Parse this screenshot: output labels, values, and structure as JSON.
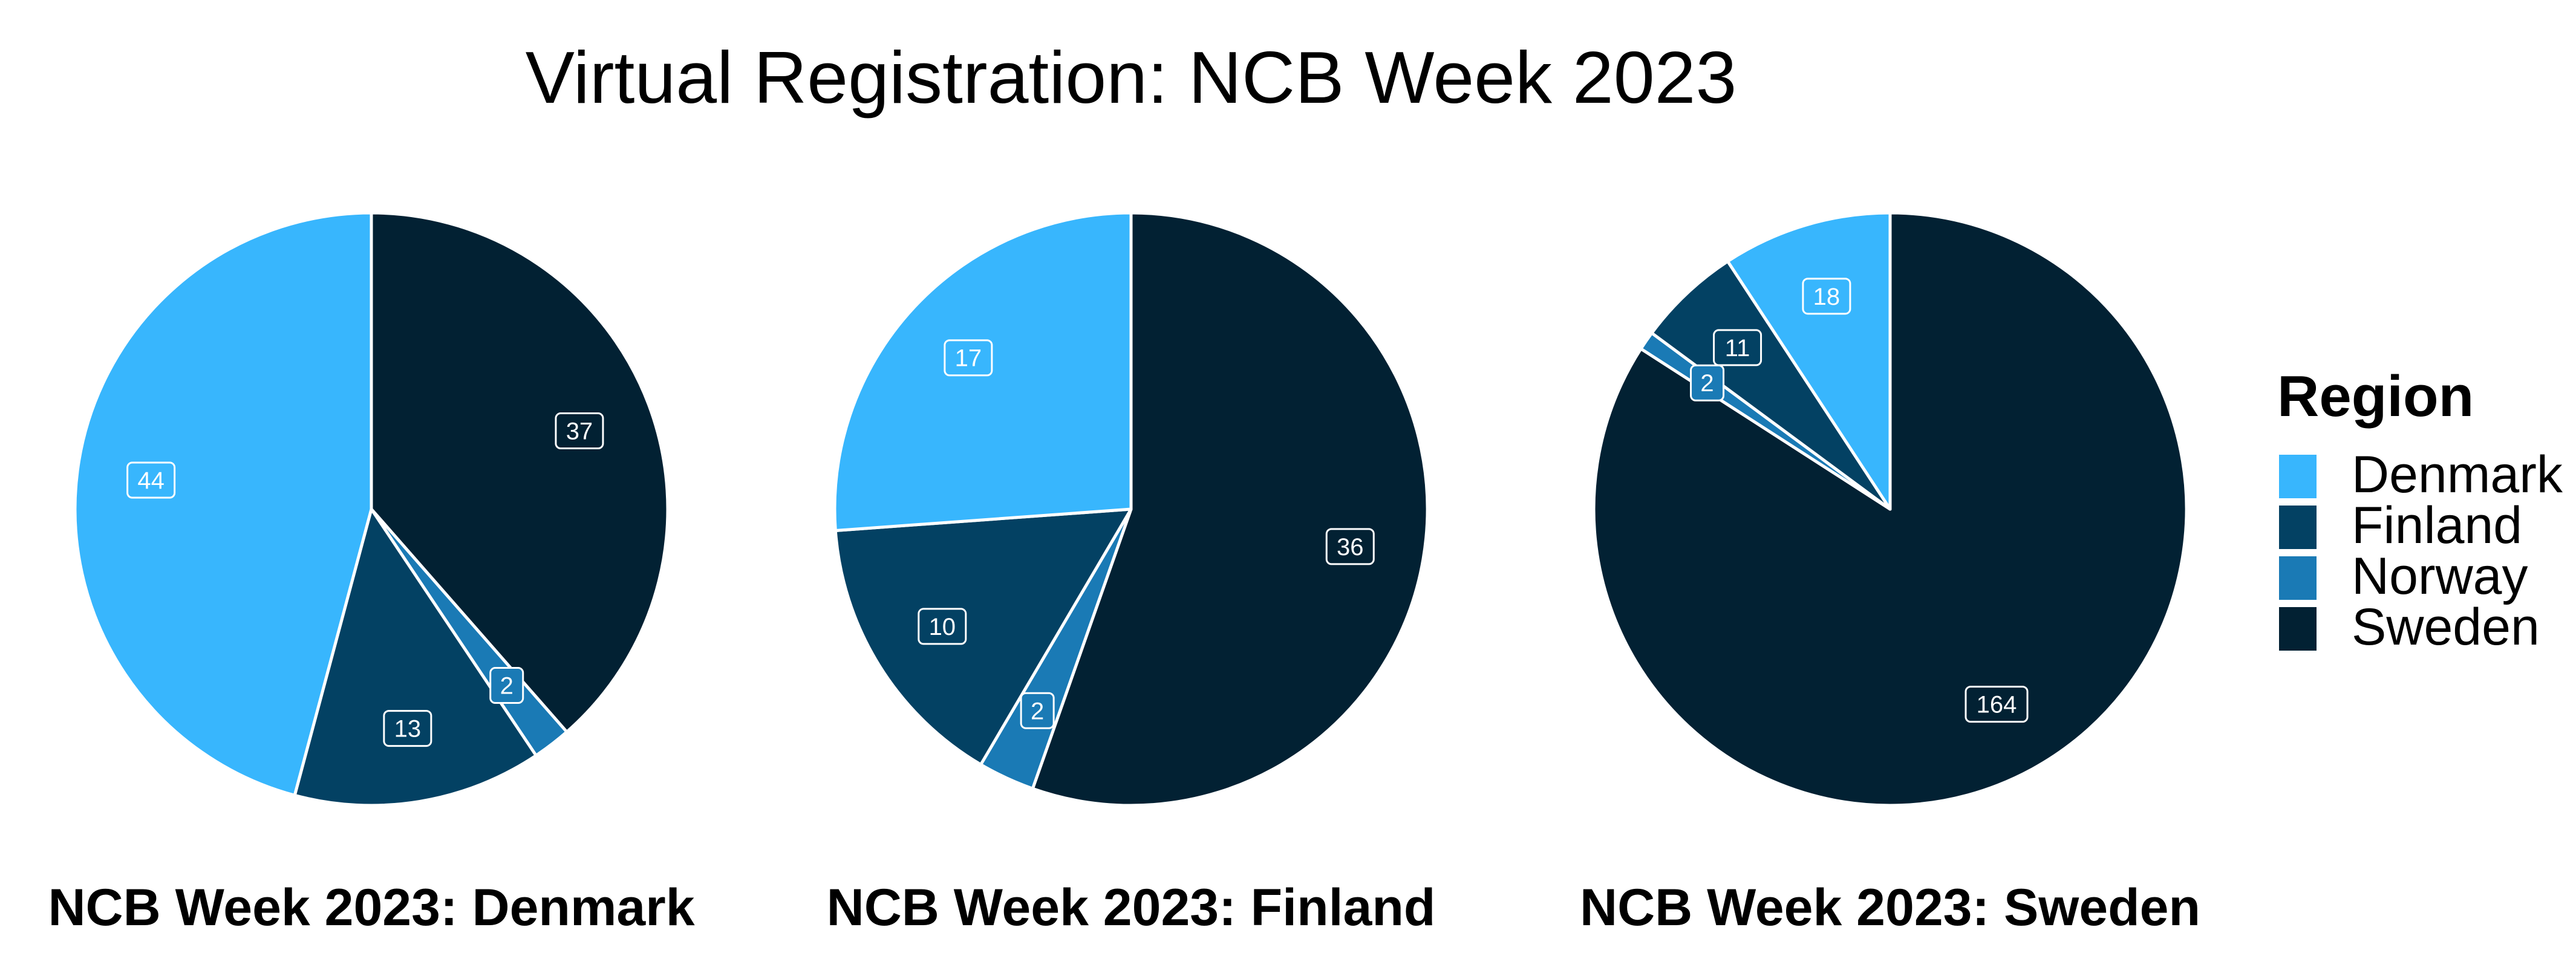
{
  "title": "Virtual Registration: NCB Week 2023",
  "colors": {
    "Denmark": "#38b6fd",
    "Finland": "#034163",
    "Norway": "#1a7ab5",
    "Sweden": "#022133"
  },
  "legend": {
    "title": "Region",
    "placement": "right",
    "items": [
      "Denmark",
      "Finland",
      "Norway",
      "Sweden"
    ]
  },
  "chart_data": [
    {
      "type": "pie",
      "title": "NCB Week 2023: Denmark",
      "categories": [
        "Sweden",
        "Norway",
        "Finland",
        "Denmark"
      ],
      "values": [
        37,
        2,
        13,
        44
      ]
    },
    {
      "type": "pie",
      "title": "NCB Week 2023: Finland",
      "categories": [
        "Sweden",
        "Norway",
        "Finland",
        "Denmark"
      ],
      "values": [
        36,
        2,
        10,
        17
      ]
    },
    {
      "type": "pie",
      "title": "NCB Week 2023: Sweden",
      "categories": [
        "Sweden",
        "Norway",
        "Finland",
        "Denmark"
      ],
      "values": [
        164,
        2,
        11,
        18
      ]
    }
  ]
}
